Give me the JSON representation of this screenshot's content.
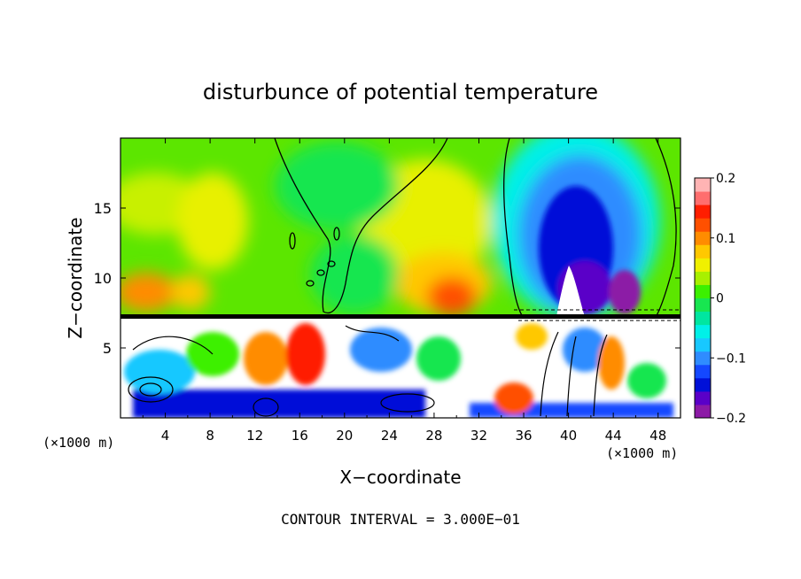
{
  "chart_data": {
    "type": "heatmap",
    "title": "disturbunce of potential temperature",
    "xlabel": "X−coordinate",
    "ylabel": "Z−coordinate",
    "x_unit_note": "(×1000 m)",
    "y_unit_note": "(×1000 m)",
    "footer": "CONTOUR INTERVAL = 3.000E−01",
    "xlim": [
      0,
      50
    ],
    "ylim": [
      0,
      20
    ],
    "x_ticks": [
      4,
      8,
      12,
      16,
      20,
      24,
      28,
      32,
      36,
      40,
      44,
      48
    ],
    "x_tick_labels": [
      "4",
      "8",
      "12",
      "16",
      "20",
      "24",
      "28",
      "32",
      "36",
      "40",
      "44",
      "48"
    ],
    "y_ticks": [
      5,
      10,
      15
    ],
    "y_tick_labels": [
      "5",
      "10",
      "15"
    ],
    "colorbar": {
      "range": [
        -0.2,
        0.2
      ],
      "tick_values": [
        0.2,
        0.1,
        0,
        -0.1,
        -0.2
      ],
      "tick_labels": [
        "0.2",
        "0.1",
        "0",
        "−0.1",
        "−0.2"
      ],
      "colors": [
        "#8c1aa6",
        "#5a00c8",
        "#0010d8",
        "#1448ff",
        "#2f8cff",
        "#18c8ff",
        "#00f0e8",
        "#00e6a0",
        "#18e650",
        "#3cf000",
        "#a8f000",
        "#f0f000",
        "#ffc800",
        "#ff8c00",
        "#ff5000",
        "#ff1e00",
        "#ff6e6e",
        "#ffb4b4"
      ]
    }
  }
}
